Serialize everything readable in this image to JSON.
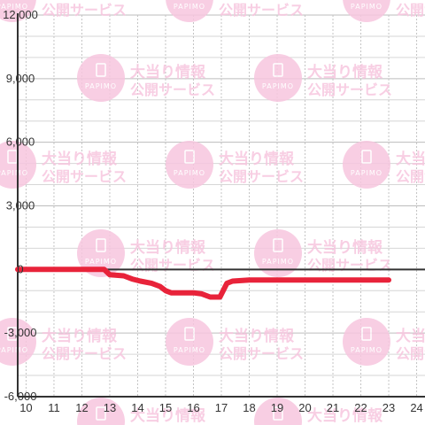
{
  "chart_data": {
    "type": "line",
    "title": "",
    "xlabel": "",
    "ylabel": "",
    "xlim": [
      9.7,
      24.3
    ],
    "ylim": [
      -6000,
      12000
    ],
    "x_ticks": [
      10,
      11,
      12,
      13,
      14,
      15,
      16,
      17,
      18,
      19,
      20,
      21,
      22,
      23,
      24
    ],
    "x_tick_labels": [
      "10",
      "11",
      "12",
      "13",
      "14",
      "15",
      "16",
      "17",
      "18",
      "19",
      "20",
      "21",
      "22",
      "23",
      "24"
    ],
    "y_ticks": [
      -6000,
      -3000,
      0,
      3000,
      6000,
      9000,
      12000
    ],
    "y_tick_labels": [
      "-6,000",
      "-3,000",
      "0",
      "3,000",
      "6,000",
      "9,000",
      "12,000"
    ],
    "grid": true,
    "series": [
      {
        "color": "#e8233a",
        "x": [
          9.7,
          10.5,
          11.5,
          12.4,
          12.8,
          13.0,
          13.5,
          13.8,
          14.1,
          14.5,
          14.8,
          15.0,
          15.2,
          16.0,
          16.3,
          16.6,
          16.95,
          17.2,
          17.4,
          18.0,
          19.0,
          20.0,
          21.0,
          22.0,
          23.0
        ],
        "values": [
          0,
          0,
          0,
          0,
          0,
          -250,
          -300,
          -450,
          -550,
          -650,
          -800,
          -1000,
          -1100,
          -1100,
          -1150,
          -1300,
          -1300,
          -650,
          -550,
          -500,
          -500,
          -500,
          -500,
          -500,
          -500
        ]
      }
    ]
  },
  "watermark": {
    "line1": "大当り情報",
    "line2": "公開サービス",
    "badge": "PAPIMO",
    "color": "#f7c6df"
  }
}
